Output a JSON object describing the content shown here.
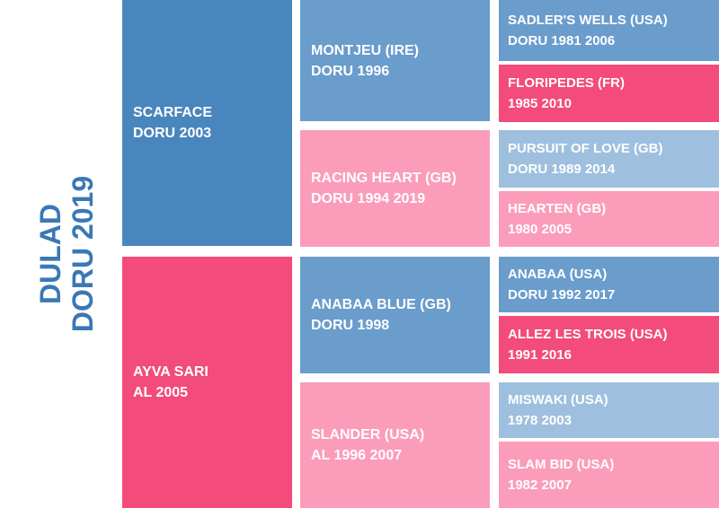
{
  "colors": {
    "blue_dark": "#4a86be",
    "blue_mid": "#6a9ccc",
    "blue_light": "#9ec0de",
    "pink_dark": "#f24b7c",
    "pink_light": "#fb9dba",
    "title": "#3a78b5"
  },
  "horse": {
    "name": "DULAD",
    "info": "DORU 2019"
  },
  "parents": {
    "sire": {
      "name": "SCARFACE",
      "info": "DORU 2003"
    },
    "dam": {
      "name": "AYVA SARI",
      "info": "AL 2005"
    }
  },
  "grandparents": [
    {
      "name": "MONTJEU (IRE)",
      "info": "DORU 1996"
    },
    {
      "name": "RACING HEART (GB)",
      "info": "DORU 1994 2019"
    },
    {
      "name": "ANABAA BLUE (GB)",
      "info": "DORU 1998"
    },
    {
      "name": "SLANDER (USA)",
      "info": "AL 1996 2007"
    }
  ],
  "great_grandparents": [
    {
      "name": "SADLER'S WELLS (USA)",
      "info": "DORU 1981 2006"
    },
    {
      "name": "FLORIPEDES (FR)",
      "info": "1985 2010"
    },
    {
      "name": "PURSUIT OF LOVE (GB)",
      "info": "DORU 1989 2014"
    },
    {
      "name": "HEARTEN (GB)",
      "info": "1980 2005"
    },
    {
      "name": "ANABAA (USA)",
      "info": "DORU 1992 2017"
    },
    {
      "name": "ALLEZ LES TROIS (USA)",
      "info": "1991 2016"
    },
    {
      "name": "MISWAKI (USA)",
      "info": "1978 2003"
    },
    {
      "name": "SLAM BID (USA)",
      "info": "1982 2007"
    }
  ]
}
